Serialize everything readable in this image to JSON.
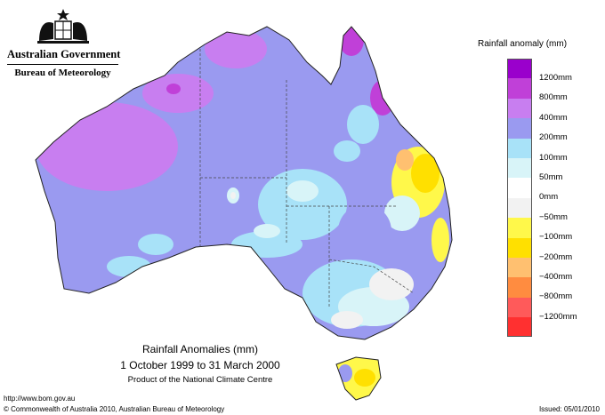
{
  "header": {
    "government": "Australian Government",
    "bureau": "Bureau of Meteorology"
  },
  "legend": {
    "title": "Rainfall anomaly (mm)",
    "items": [
      {
        "label": "1200mm",
        "color": "#9a00cc"
      },
      {
        "label": "800mm",
        "color": "#c040d8"
      },
      {
        "label": "400mm",
        "color": "#c87ef0"
      },
      {
        "label": "200mm",
        "color": "#9a9af0"
      },
      {
        "label": "100mm",
        "color": "#a8e2f8"
      },
      {
        "label": "50mm",
        "color": "#d8f4f8"
      },
      {
        "label": "0mm",
        "color": "#ffffff"
      },
      {
        "label": "−50mm",
        "color": "#f2f2f2"
      },
      {
        "label": "−100mm",
        "color": "#fff84a"
      },
      {
        "label": "−200mm",
        "color": "#ffe000"
      },
      {
        "label": "−400mm",
        "color": "#ffc070"
      },
      {
        "label": "−800mm",
        "color": "#ff8c40"
      },
      {
        "label": "−1200mm",
        "color": "#ff5a5a"
      },
      {
        "label": "",
        "color": "#ff3030"
      }
    ]
  },
  "caption": {
    "title": "Rainfall Anomalies (mm)",
    "date_range": "1 October 1999 to 31 March 2000",
    "product": "Product of the National Climate Centre"
  },
  "footer": {
    "url": "http://www.bom.gov.au",
    "copyright": "© Commonwealth of Australia 2010, Australian Bureau of Meteorology",
    "issued": "Issued: 05/01/2010"
  },
  "icons": {
    "coat_of_arms": "coat-of-arms-icon"
  }
}
